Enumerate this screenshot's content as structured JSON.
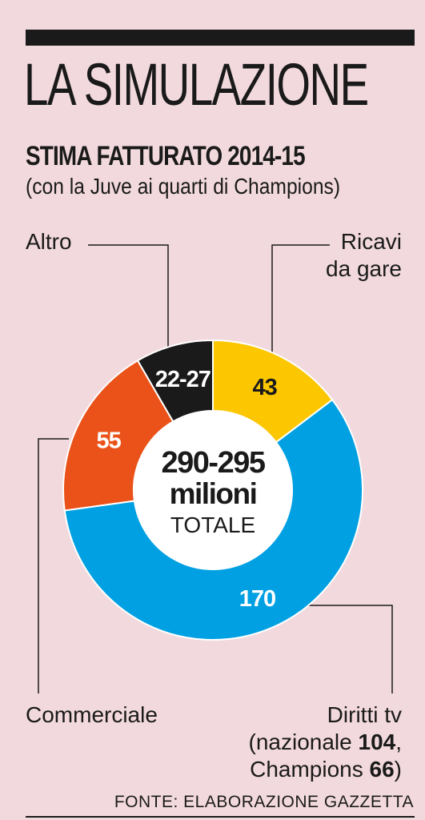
{
  "header": {
    "title": "LA SIMULAZIONE",
    "subtitle": "STIMA FATTURATO 2014-15",
    "note": "(con la Juve ai quarti di Champions)"
  },
  "center": {
    "value": "290-295",
    "unit": "milioni",
    "label": "TOTALE"
  },
  "labels": {
    "altro": "Altro",
    "ricavi_1": "Ricavi",
    "ricavi_2": "da gare",
    "commerciale": "Commerciale",
    "diritti_1": "Diritti tv",
    "diritti_2a": "(nazionale ",
    "diritti_2b": "104",
    "diritti_2c": ",",
    "diritti_3a": "Champions ",
    "diritti_3b": "66",
    "diritti_3c": ")"
  },
  "source": "FONTE: ELABORAZIONE GAZZETTA",
  "chart_data": {
    "type": "pie",
    "title": "STIMA FATTURATO 2014-15",
    "subtitle": "(con la Juve ai quarti di Champions)",
    "center_text": "290-295 milioni TOTALE",
    "slices": [
      {
        "name": "Ricavi da gare",
        "label": "43",
        "value": 43,
        "color": "#fcc600",
        "text_color": "#1a1a1a"
      },
      {
        "name": "Diritti tv",
        "label": "170",
        "value": 170,
        "color": "#00a0e2",
        "text_color": "#ffffff"
      },
      {
        "name": "Commerciale",
        "label": "55",
        "value": 55,
        "color": "#ea5219",
        "text_color": "#ffffff"
      },
      {
        "name": "Altro",
        "label": "22-27",
        "value": 24.5,
        "color": "#1a1a1a",
        "text_color": "#ffffff"
      }
    ],
    "annotations": {
      "Diritti tv": "(nazionale 104, Champions 66)"
    },
    "colors": {
      "background": "#f2d9dd",
      "hole": "#ffffff",
      "ink": "#1a1a1a"
    }
  }
}
